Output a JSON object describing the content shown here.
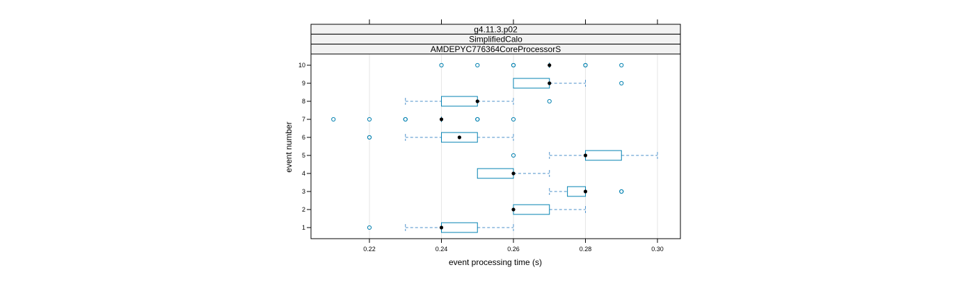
{
  "chart_data": {
    "type": "boxplot",
    "strips": [
      "g4.11.3.p02",
      "SimplifiedCalo",
      "AMDEPYC776364CoreProcessorS"
    ],
    "xlabel": "event processing time (s)",
    "ylabel": "event number",
    "xlim": [
      0.205,
      0.306
    ],
    "x_ticks": [
      0.22,
      0.24,
      0.26,
      0.28,
      0.3
    ],
    "x_tick_labels": [
      "0.22",
      "0.24",
      "0.26",
      "0.28",
      "0.30"
    ],
    "categories": [
      "1",
      "2",
      "3",
      "4",
      "5",
      "6",
      "7",
      "8",
      "9",
      "10"
    ],
    "grid": "vertical",
    "colors": {
      "box": "#0080b0",
      "whisker": "#4a8fc9",
      "median": "#000000",
      "grid": "#e6e6e6",
      "strip_bg": "#f2f2f2"
    },
    "boxes": [
      {
        "event": "1",
        "wlo": 0.23,
        "q1": 0.24,
        "med": 0.24,
        "q3": 0.25,
        "whi": 0.26,
        "outliers": [
          0.22
        ]
      },
      {
        "event": "2",
        "wlo": 0.26,
        "q1": 0.26,
        "med": 0.26,
        "q3": 0.27,
        "whi": 0.28,
        "outliers": []
      },
      {
        "event": "3",
        "wlo": 0.27,
        "q1": 0.275,
        "med": 0.28,
        "q3": 0.28,
        "whi": 0.28,
        "outliers": [
          0.29,
          0.29
        ]
      },
      {
        "event": "4",
        "wlo": 0.25,
        "q1": 0.25,
        "med": 0.26,
        "q3": 0.26,
        "whi": 0.27,
        "outliers": []
      },
      {
        "event": "5",
        "wlo": 0.27,
        "q1": 0.28,
        "med": 0.28,
        "q3": 0.29,
        "whi": 0.3,
        "outliers": [
          0.26
        ]
      },
      {
        "event": "6",
        "wlo": 0.23,
        "q1": 0.24,
        "med": 0.245,
        "q3": 0.25,
        "whi": 0.26,
        "outliers": [
          0.22,
          0.22
        ]
      },
      {
        "event": "7",
        "wlo": 0.24,
        "q1": 0.24,
        "med": 0.24,
        "q3": 0.24,
        "whi": 0.24,
        "outliers": [
          0.21,
          0.22,
          0.23,
          0.23,
          0.25,
          0.25,
          0.26
        ]
      },
      {
        "event": "8",
        "wlo": 0.23,
        "q1": 0.24,
        "med": 0.25,
        "q3": 0.25,
        "whi": 0.26,
        "outliers": [
          0.27
        ]
      },
      {
        "event": "9",
        "wlo": 0.26,
        "q1": 0.26,
        "med": 0.27,
        "q3": 0.27,
        "whi": 0.28,
        "outliers": [
          0.29
        ]
      },
      {
        "event": "10",
        "wlo": 0.27,
        "q1": 0.27,
        "med": 0.27,
        "q3": 0.27,
        "whi": 0.27,
        "outliers": [
          0.24,
          0.25,
          0.26,
          0.26,
          0.28,
          0.28,
          0.29
        ]
      }
    ]
  }
}
